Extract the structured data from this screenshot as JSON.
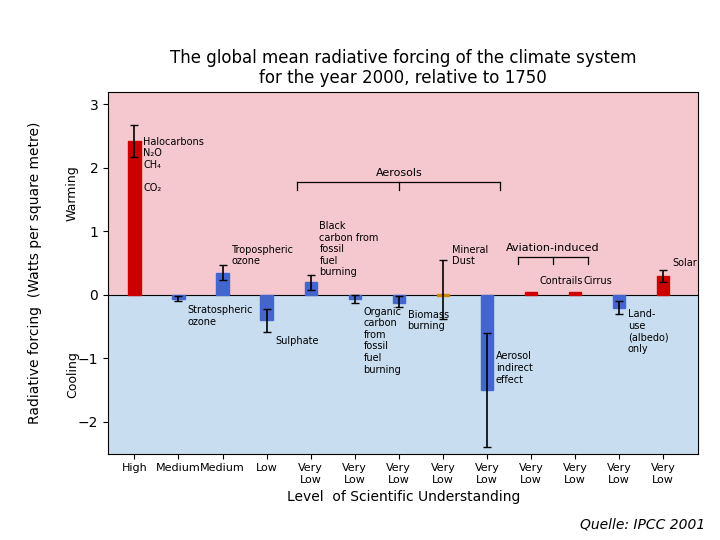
{
  "chart_data": {
    "type": "bar",
    "title": "The global mean radiative forcing of the climate system\nfor the year 2000, relative to 1750",
    "x_label": "Level  of Scientific Understanding",
    "y_label": "Radiative forcing  (Watts per square metre)",
    "source": "Quelle: IPCC 2001",
    "categories": [
      "High",
      "Medium",
      "Medium",
      "Low",
      "Very\nLow",
      "Very\nLow",
      "Very\nLow",
      "Very\nLow",
      "Very\nLow",
      "Very\nLow",
      "Very\nLow",
      "Very\nLow",
      "Very\nLow"
    ],
    "bar_labels": [
      "Halocarbons\nN₂O\nCH₄\n\nCO₂",
      "Stratospheric\nozone",
      "Tropospheric\nozone",
      "Sulphate",
      "Black\ncarbon from\nfossil\nfuel\nburning",
      "Organic\ncarbon\nfrom\nfossil\nfuel\nburning",
      "Biomass\nburning",
      "Mineral\nDust",
      "Aerosol\nindirect\neffect",
      "Contrails",
      "Cirrus",
      "Land-\nuse\n(albedo)\nonly",
      "Solar"
    ],
    "bar_label_y": [
      2.05,
      -0.33,
      0.62,
      -0.72,
      0.72,
      -0.72,
      -0.4,
      0.62,
      -1.15,
      0.22,
      0.22,
      -0.58,
      0.5
    ],
    "values": [
      2.43,
      -0.05,
      0.35,
      -0.4,
      0.2,
      -0.06,
      -0.1,
      0.0,
      -1.5,
      0.02,
      0.02,
      -0.2,
      0.3
    ],
    "error_low": [
      0.25,
      0.04,
      0.12,
      0.18,
      0.12,
      0.06,
      0.09,
      0.38,
      0.9,
      0.0,
      0.0,
      0.1,
      0.1
    ],
    "error_high": [
      0.25,
      0.04,
      0.12,
      0.18,
      0.12,
      0.06,
      0.09,
      0.55,
      0.9,
      0.0,
      0.0,
      0.1,
      0.1
    ],
    "bar_bottom": [
      0,
      -0.06,
      0,
      -0.4,
      0,
      -0.07,
      -0.12,
      -0.01,
      -1.5,
      0,
      0,
      -0.2,
      0
    ],
    "bar_top": [
      2.43,
      0,
      0.35,
      0,
      0.2,
      0,
      0,
      0.01,
      0,
      0.04,
      0.04,
      0,
      0.3
    ],
    "colors": [
      "#cc0000",
      "#4466cc",
      "#4466cc",
      "#4466cc",
      "#4466cc",
      "#4466cc",
      "#4466cc",
      "#cc8800",
      "#4466cc",
      "#cc0000",
      "#cc0000",
      "#4466cc",
      "#cc0000"
    ],
    "regions": [
      {
        "label": "Warming",
        "from": 0,
        "to": 3.2,
        "color": "#f5c8d0"
      },
      {
        "label": "Cooling",
        "from": -2.5,
        "to": 0,
        "color": "#c8ddf0"
      }
    ],
    "groups": [
      {
        "text": "Aerosols",
        "from": "Black\ncarbon from\nfossil\nfuel\nburning",
        "to": "Aerosol\nindirect\neffect",
        "y": 1.78
      },
      {
        "text": "Aviation-induced",
        "from": "Contrails",
        "to": "Cirrus",
        "y": 0.6
      }
    ],
    "ylim": [
      -2.5,
      3.2
    ],
    "yticks": [
      {
        "value": -2,
        "label": "−2"
      },
      {
        "value": -1,
        "label": "−1"
      },
      0,
      1,
      2,
      3
    ],
    "grid": false
  }
}
